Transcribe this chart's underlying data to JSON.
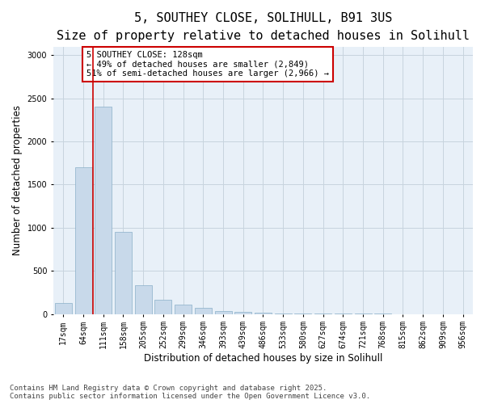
{
  "title_line1": "5, SOUTHEY CLOSE, SOLIHULL, B91 3US",
  "title_line2": "Size of property relative to detached houses in Solihull",
  "xlabel": "Distribution of detached houses by size in Solihull",
  "ylabel": "Number of detached properties",
  "categories": [
    "17sqm",
    "64sqm",
    "111sqm",
    "158sqm",
    "205sqm",
    "252sqm",
    "299sqm",
    "346sqm",
    "393sqm",
    "439sqm",
    "486sqm",
    "533sqm",
    "580sqm",
    "627sqm",
    "674sqm",
    "721sqm",
    "768sqm",
    "815sqm",
    "862sqm",
    "909sqm",
    "956sqm"
  ],
  "values": [
    130,
    1700,
    2400,
    950,
    330,
    160,
    110,
    70,
    35,
    20,
    10,
    8,
    5,
    3,
    2,
    1,
    1,
    0,
    0,
    0,
    0
  ],
  "bar_color": "#c8d9ea",
  "bar_edge_color": "#8aafc8",
  "grid_color": "#c8d4de",
  "background_color": "#e8f0f8",
  "annotation_text": "5 SOUTHEY CLOSE: 128sqm\n← 49% of detached houses are smaller (2,849)\n51% of semi-detached houses are larger (2,966) →",
  "vline_x": 1.5,
  "vline_color": "#cc0000",
  "ylim": [
    0,
    3100
  ],
  "yticks": [
    0,
    500,
    1000,
    1500,
    2000,
    2500,
    3000
  ],
  "footer_line1": "Contains HM Land Registry data © Crown copyright and database right 2025.",
  "footer_line2": "Contains public sector information licensed under the Open Government Licence v3.0.",
  "annotation_box_color": "#cc0000",
  "title_fontsize": 11,
  "subtitle_fontsize": 9.5,
  "label_fontsize": 8.5,
  "tick_fontsize": 7,
  "footer_fontsize": 6.5,
  "annot_fontsize": 7.5
}
